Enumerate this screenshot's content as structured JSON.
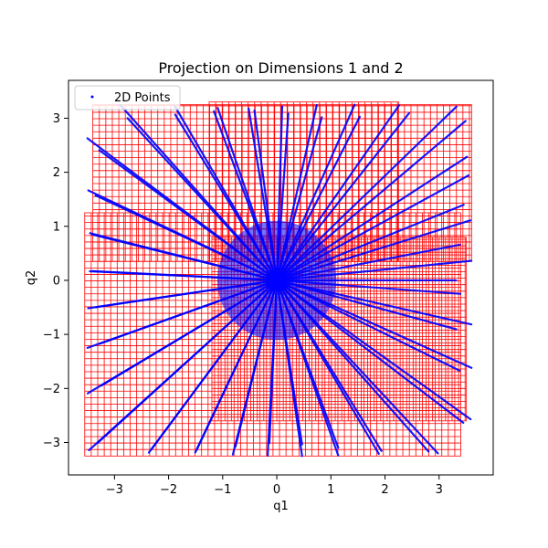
{
  "chart_data": {
    "type": "scatter",
    "title": "Projection on Dimensions 1 and 2",
    "xlabel": "q1",
    "ylabel": "q2",
    "xlim": [
      -3.85,
      4.0
    ],
    "ylim": [
      -3.6,
      3.7
    ],
    "xticks": [
      "−3",
      "−2",
      "−1",
      "0",
      "1",
      "2",
      "3"
    ],
    "xtick_values": [
      -3,
      -2,
      -1,
      0,
      1,
      2,
      3
    ],
    "yticks": [
      "−3",
      "−2",
      "−1",
      "0",
      "1",
      "2",
      "3"
    ],
    "ytick_values": [
      -3,
      -2,
      -1,
      0,
      1,
      2,
      3
    ],
    "grid": false,
    "legend": {
      "placement": "top-left",
      "entries": [
        "2D Points"
      ]
    },
    "series": [
      {
        "name": "2D Points",
        "color": "#0000ff",
        "marker": "point",
        "description_ray_count": 64,
        "extent": {
          "x": [
            -3.5,
            3.6
          ],
          "y": [
            -3.25,
            3.25
          ]
        }
      }
    ],
    "grid_cells": {
      "color": "#ff0000",
      "cell_size": 0.12,
      "regions": [
        {
          "x": [
            -3.4,
            3.6
          ],
          "y": [
            0.35,
            3.25
          ]
        },
        {
          "x": [
            -1.25,
            2.25
          ],
          "y": [
            0.35,
            3.3
          ]
        },
        {
          "x": [
            -3.55,
            3.4
          ],
          "y": [
            -3.25,
            1.25
          ]
        },
        {
          "x": [
            -1.2,
            3.5
          ],
          "y": [
            -2.6,
            0.8
          ]
        }
      ]
    }
  }
}
